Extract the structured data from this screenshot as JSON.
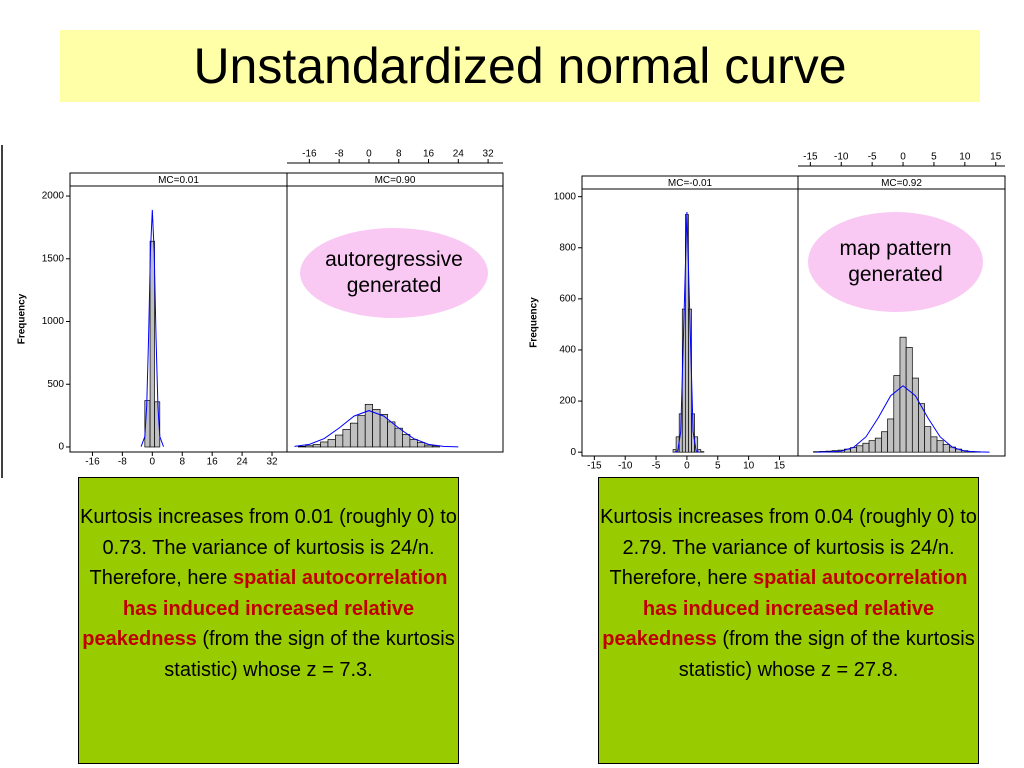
{
  "title": "Unstandardized normal curve",
  "chart_data": [
    {
      "type": "histogram",
      "title": "MC=0.01",
      "y_label": "Frequency",
      "color": "#c0c0c0",
      "bins": [
        -2,
        -0.6,
        0.6,
        2
      ],
      "values": [
        370,
        1640,
        360
      ],
      "curve": {
        "color": "#0000ff",
        "x": [
          -3,
          -2,
          -1.5,
          -1,
          -0.5,
          0,
          0.5,
          1,
          1.5,
          2,
          3
        ],
        "values": [
          2,
          83,
          325,
          866,
          1555,
          1890,
          1555,
          866,
          325,
          83,
          2
        ]
      },
      "xlim": [
        -22,
        36
      ],
      "xticks": [
        -16,
        -8,
        0,
        8,
        16,
        24,
        32
      ],
      "xaxis": "bottom",
      "ylim": [
        -40,
        2080
      ],
      "yticks": [
        0,
        500,
        1000,
        1500,
        2000
      ]
    },
    {
      "type": "histogram",
      "title": "MC=0.90",
      "color": "#c0c0c0",
      "bins": [
        -19,
        -17,
        -15,
        -13,
        -11,
        -9,
        -7,
        -5,
        -3,
        -1,
        1,
        3,
        5,
        7,
        9,
        11,
        13,
        15,
        17,
        19
      ],
      "values": [
        5,
        10,
        20,
        40,
        60,
        95,
        140,
        190,
        250,
        340,
        300,
        260,
        200,
        150,
        100,
        60,
        35,
        15,
        8
      ],
      "curve": {
        "color": "#0000ff",
        "x": [
          -20,
          -16,
          -12,
          -8,
          -4,
          0,
          4,
          8,
          12,
          16,
          20,
          24
        ],
        "values": [
          5,
          21,
          67,
          151,
          246,
          290,
          246,
          151,
          67,
          21,
          5,
          1
        ]
      },
      "xlim": [
        -22,
        36
      ],
      "xticks": [
        -16,
        -8,
        0,
        8,
        16,
        24,
        32
      ],
      "xaxis": "top",
      "ylim": [
        -40,
        2080
      ]
    },
    {
      "type": "histogram",
      "title": "MC=-0.01",
      "y_label": "Frequency",
      "color": "#c0c0c0",
      "bins": [
        -2.25,
        -1.75,
        -1.25,
        -0.75,
        -0.25,
        0.25,
        0.75,
        1.25,
        1.75,
        2.25,
        2.75
      ],
      "values": [
        10,
        60,
        150,
        560,
        930,
        560,
        150,
        60,
        10,
        2
      ],
      "curve": {
        "color": "#0000ff",
        "x": [
          -2,
          -1.5,
          -1,
          -0.5,
          0,
          0.5,
          1,
          1.5,
          2
        ],
        "values": [
          0,
          4,
          80,
          507,
          940,
          507,
          80,
          4,
          0
        ]
      },
      "xlim": [
        -17,
        18
      ],
      "xticks": [
        -15,
        -10,
        -5,
        0,
        5,
        10,
        15
      ],
      "xaxis": "bottom",
      "ylim": [
        -15,
        1030
      ],
      "yticks": [
        0,
        200,
        400,
        600,
        800,
        1000
      ]
    },
    {
      "type": "histogram",
      "title": "MC=0.92",
      "color": "#c0c0c0",
      "bins": [
        -14.5,
        -13.5,
        -12.5,
        -11.5,
        -10.5,
        -9.5,
        -8.5,
        -7.5,
        -6.5,
        -5.5,
        -4.5,
        -3.5,
        -2.5,
        -1.5,
        -0.5,
        0.5,
        1.5,
        2.5,
        3.5,
        4.5,
        5.5,
        6.5,
        7.5,
        8.5,
        9.5,
        10.5,
        11.5,
        12.5
      ],
      "values": [
        2,
        3,
        4,
        6,
        8,
        12,
        18,
        25,
        35,
        45,
        55,
        80,
        130,
        300,
        450,
        410,
        290,
        190,
        100,
        60,
        45,
        30,
        20,
        12,
        6,
        3,
        2
      ],
      "curve": {
        "color": "#0000ff",
        "x": [
          -14,
          -12,
          -10,
          -8,
          -6,
          -4,
          -2,
          0,
          2,
          4,
          6,
          8,
          10,
          12,
          14
        ],
        "values": [
          0,
          1,
          4,
          19,
          60,
          135,
          221,
          260,
          221,
          135,
          60,
          19,
          4,
          1,
          0
        ]
      },
      "xlim": [
        -17,
        16.5
      ],
      "xticks": [
        -15,
        -10,
        -5,
        0,
        5,
        10,
        15
      ],
      "xaxis": "top",
      "ylim": [
        -15,
        1030
      ]
    }
  ],
  "ovals": [
    "autoregressive generated",
    "map pattern generated"
  ],
  "boxes": [
    {
      "intro": "Kurtosis increases from 0.01 (roughly 0) to 0.73. The variance of kurtosis is 24/n.",
      "lead": "Therefore, here",
      "emphasis": "spatial autocorrelation has induced increased relative peakedness",
      "tail": "(from the sign of the kurtosis statistic) whose z = 7.3."
    },
    {
      "intro": "Kurtosis increases from 0.04 (roughly 0) to 2.79. The variance of kurtosis is 24/n.",
      "lead": "Therefore, here",
      "emphasis": "spatial autocorrelation has induced increased relative peakedness",
      "tail": "(from the sign of the kurtosis statistic) whose z = 27.8."
    }
  ]
}
